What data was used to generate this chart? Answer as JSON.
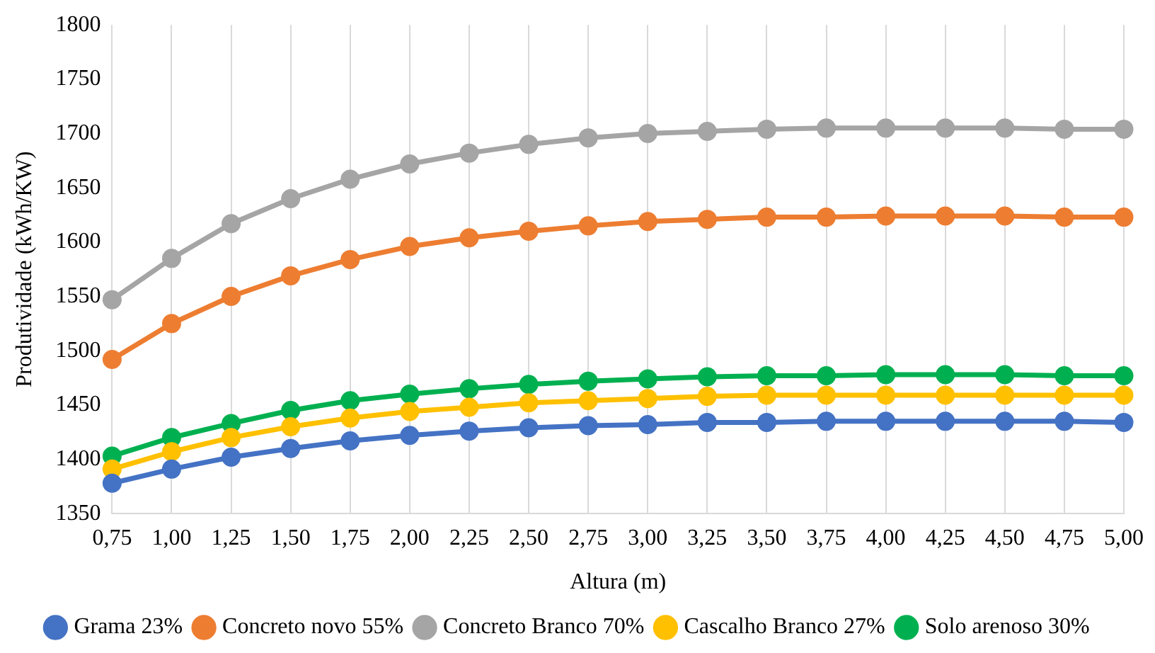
{
  "chart_data": {
    "type": "line",
    "xlabel": "Altura (m)",
    "ylabel": "Produtividade (kWh/KW)",
    "categories": [
      "0,75",
      "1,00",
      "1,25",
      "1,50",
      "1,75",
      "2,00",
      "2,25",
      "2,50",
      "2,75",
      "3,00",
      "3,25",
      "3,50",
      "3,75",
      "4,00",
      "4,25",
      "4,50",
      "4,75",
      "5,00"
    ],
    "series": [
      {
        "name": "Grama 23%",
        "color": "#4472c4",
        "values": [
          1378,
          1391,
          1402,
          1410,
          1417,
          1422,
          1426,
          1429,
          1431,
          1432,
          1434,
          1434,
          1435,
          1435,
          1435,
          1435,
          1435,
          1434
        ]
      },
      {
        "name": "Concreto novo 55%",
        "color": "#ed7d31",
        "values": [
          1492,
          1525,
          1550,
          1569,
          1584,
          1596,
          1604,
          1610,
          1615,
          1619,
          1621,
          1623,
          1623,
          1624,
          1624,
          1624,
          1623,
          1623
        ]
      },
      {
        "name": "Concreto Branco 70%",
        "color": "#a5a5a5",
        "values": [
          1547,
          1585,
          1617,
          1640,
          1658,
          1672,
          1682,
          1690,
          1696,
          1700,
          1702,
          1704,
          1705,
          1705,
          1705,
          1705,
          1704,
          1704
        ]
      },
      {
        "name": "Cascalho Branco 27%",
        "color": "#ffc000",
        "values": [
          1391,
          1407,
          1420,
          1430,
          1438,
          1444,
          1448,
          1452,
          1454,
          1456,
          1458,
          1459,
          1459,
          1459,
          1459,
          1459,
          1459,
          1459
        ]
      },
      {
        "name": "Solo arenoso 30%",
        "color": "#00b050",
        "values": [
          1403,
          1420,
          1433,
          1445,
          1454,
          1460,
          1465,
          1469,
          1472,
          1474,
          1476,
          1477,
          1477,
          1478,
          1478,
          1478,
          1477,
          1477
        ]
      }
    ],
    "ylim": [
      1350,
      1800
    ],
    "yticks": [
      1350,
      1400,
      1450,
      1500,
      1550,
      1600,
      1650,
      1700,
      1750,
      1800
    ],
    "grid": "x",
    "legend": "bottom",
    "marker": "circle",
    "line_style": "solid"
  }
}
